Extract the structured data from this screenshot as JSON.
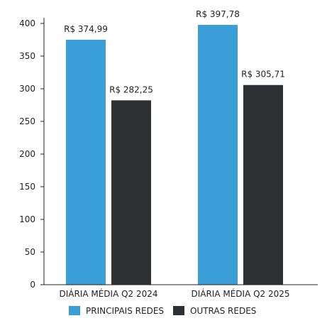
{
  "chart_data": {
    "type": "bar",
    "categories": [
      "DIÁRIA MÉDIA Q2 2024",
      "DIÁRIA MÉDIA Q2 2025"
    ],
    "series": [
      {
        "name": "PRINCIPAIS REDES",
        "values": [
          374.99,
          397.78
        ],
        "labels": [
          "R$ 374,99",
          "R$ 397,78"
        ],
        "color": "#3a9fd8"
      },
      {
        "name": "OUTRAS REDES",
        "values": [
          282.25,
          305.71
        ],
        "labels": [
          "R$ 282,25",
          "R$ 305,71"
        ],
        "color": "#2e3134"
      }
    ],
    "yticks": [
      "0",
      "50",
      "100",
      "150",
      "200",
      "250",
      "300",
      "350",
      "400"
    ],
    "ylim": [
      0,
      400
    ],
    "grid": false,
    "legend": "bottom-center",
    "axis_color": "#231f20"
  }
}
